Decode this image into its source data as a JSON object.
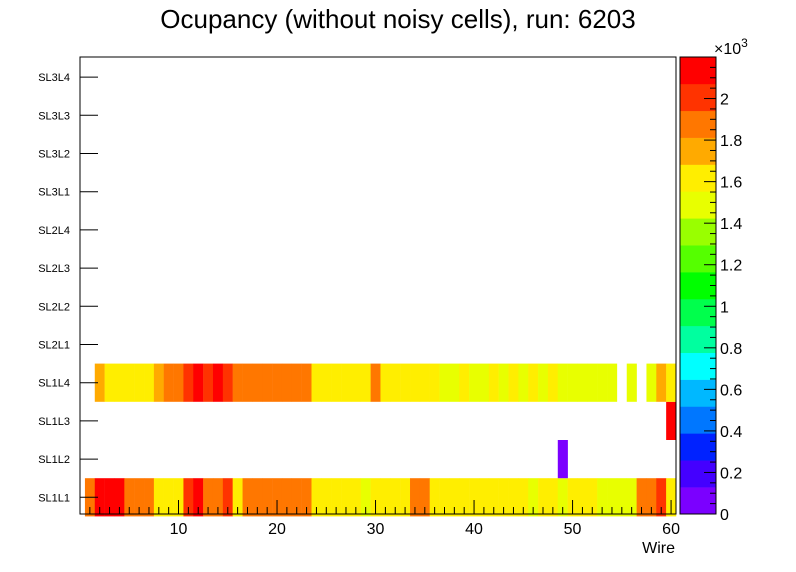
{
  "chart_data": {
    "type": "heatmap",
    "title": "Ocupancy (without noisy cells), run: 6203",
    "xlabel": "Wire",
    "x_range": [
      0,
      60.5
    ],
    "x_ticks": [
      "10",
      "20",
      "30",
      "40",
      "50",
      "60"
    ],
    "y_categories": [
      "SL1L1",
      "SL1L2",
      "SL1L3",
      "SL1L4",
      "SL2L1",
      "SL2L2",
      "SL2L3",
      "SL2L4",
      "SL3L1",
      "SL3L2",
      "SL3L3",
      "SL3L4"
    ],
    "z_range": [
      0,
      2200
    ],
    "z_multiplier": "×10",
    "z_exponent": "3",
    "z_ticks": [
      "0",
      "0.2",
      "0.4",
      "0.6",
      "0.8",
      "1",
      "1.2",
      "1.4",
      "1.6",
      "1.8",
      "2"
    ],
    "palette": [
      "#7b00ff",
      "#4400ff",
      "#0022ff",
      "#0077ff",
      "#00b8ff",
      "#00ffff",
      "#00ff9f",
      "#00ff4c",
      "#00ff00",
      "#55ff00",
      "#99ff00",
      "#e8ff00",
      "#ffee00",
      "#ffaa00",
      "#ff7700",
      "#ff3300",
      "#ff0000"
    ],
    "rows": [
      {
        "layer": "SL1L1",
        "values": [
          1900,
          2150,
          2150,
          2150,
          1930,
          1930,
          1930,
          1650,
          1650,
          1650,
          2050,
          2100,
          1850,
          1850,
          2050,
          1650,
          1820,
          1820,
          1820,
          1820,
          1820,
          1820,
          1820,
          1650,
          1650,
          1650,
          1580,
          1650,
          1520,
          1650,
          1650,
          1580,
          1650,
          1820,
          1820,
          1650,
          1650,
          1650,
          1650,
          1650,
          1650,
          1600,
          1650,
          1650,
          1600,
          1500,
          1600,
          1600,
          1550,
          1650,
          1650,
          1650,
          1480,
          1480,
          1480,
          1480,
          1820,
          1820,
          2050,
          1560
        ]
      },
      {
        "layer": "SL1L2",
        "values": [
          null,
          null,
          null,
          null,
          null,
          null,
          null,
          null,
          null,
          null,
          null,
          null,
          null,
          null,
          null,
          null,
          null,
          null,
          null,
          null,
          null,
          null,
          null,
          null,
          null,
          null,
          null,
          null,
          null,
          null,
          null,
          null,
          null,
          null,
          null,
          null,
          null,
          null,
          null,
          null,
          null,
          null,
          null,
          null,
          null,
          null,
          null,
          null,
          80,
          null,
          null,
          null,
          null,
          null,
          null,
          null,
          null,
          null,
          null,
          null
        ]
      },
      {
        "layer": "SL1L3",
        "values": [
          null,
          null,
          null,
          null,
          null,
          null,
          null,
          null,
          null,
          null,
          null,
          null,
          null,
          null,
          null,
          null,
          null,
          null,
          null,
          null,
          null,
          null,
          null,
          null,
          null,
          null,
          null,
          null,
          null,
          null,
          null,
          null,
          null,
          null,
          null,
          null,
          null,
          null,
          null,
          null,
          null,
          null,
          null,
          null,
          null,
          null,
          null,
          null,
          null,
          null,
          null,
          null,
          null,
          null,
          null,
          null,
          null,
          null,
          null,
          2150
        ]
      },
      {
        "layer": "SL1L4",
        "values": [
          null,
          1800,
          1650,
          1650,
          1650,
          1650,
          1650,
          1800,
          1930,
          1930,
          2050,
          2150,
          2050,
          2150,
          2050,
          1820,
          1820,
          1820,
          1820,
          1820,
          1820,
          1820,
          1820,
          1650,
          1600,
          1650,
          1650,
          1650,
          1650,
          1820,
          1650,
          1650,
          1650,
          1650,
          1650,
          1600,
          1500,
          1500,
          1650,
          1500,
          1500,
          1600,
          1500,
          1650,
          1500,
          1600,
          1500,
          1650,
          1500,
          1500,
          1450,
          1450,
          1450,
          1450,
          null,
          1500,
          null,
          1500,
          1800,
          1650
        ]
      }
    ]
  }
}
